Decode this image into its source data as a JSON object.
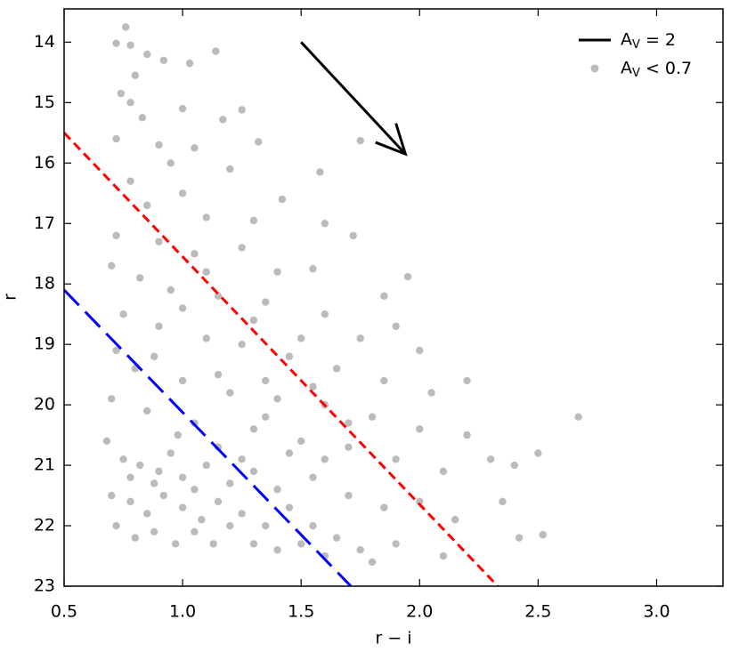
{
  "chart_data": {
    "type": "scatter",
    "x_label": "r − i",
    "y_label": "r",
    "xlim": [
      0.5,
      3.28
    ],
    "ylim": [
      13.45,
      23
    ],
    "y_inverted": true,
    "xticks": [
      0.5,
      {
        "value": 1,
        "label": "1.0"
      },
      1.5,
      {
        "value": 2,
        "label": "2.0"
      },
      2.5,
      {
        "value": 3,
        "label": "3.0"
      }
    ],
    "yticks": [
      14,
      15,
      16,
      17,
      18,
      19,
      20,
      21,
      22,
      23
    ],
    "legend": "upper right",
    "series": [
      {
        "name": "AV = 2",
        "kind": "arrow",
        "color": "#000000",
        "x": [
          1.5,
          1.94
        ],
        "y": [
          14,
          15.85
        ]
      },
      {
        "name": "AV < 0.7",
        "kind": "points",
        "color": "rgba(60,60,60,0.35)",
        "x": [
          0.76,
          0.72,
          0.78,
          0.85,
          0.92,
          1.03,
          1.14,
          0.8,
          0.74,
          0.78,
          0.83,
          1.0,
          1.17,
          1.25,
          0.72,
          0.9,
          1.05,
          0.95,
          1.2,
          1.32,
          1.58,
          1.75,
          1.42,
          1.6,
          1.72,
          0.78,
          0.85,
          1.0,
          1.1,
          1.3,
          0.72,
          0.9,
          1.05,
          1.25,
          1.4,
          1.55,
          1.85,
          1.95,
          0.7,
          0.82,
          0.95,
          1.15,
          1.35,
          1.6,
          1.75,
          1.9,
          2.0,
          0.75,
          0.9,
          1.1,
          1.25,
          1.45,
          1.65,
          1.85,
          2.05,
          2.2,
          0.72,
          0.8,
          1.0,
          1.2,
          1.4,
          1.6,
          1.8,
          2.0,
          2.2,
          2.3,
          2.67,
          0.7,
          0.85,
          1.05,
          1.3,
          1.5,
          1.7,
          1.9,
          2.1,
          2.4,
          2.5,
          0.68,
          0.75,
          0.82,
          0.9,
          0.95,
          1.0,
          1.1,
          1.2,
          1.3,
          1.4,
          1.55,
          1.7,
          1.85,
          2.0,
          2.15,
          2.35,
          2.42,
          2.52,
          0.7,
          0.78,
          0.85,
          0.92,
          1.0,
          1.08,
          1.15,
          1.25,
          1.35,
          1.45,
          1.55,
          1.65,
          1.75,
          1.9,
          2.1,
          0.72,
          0.8,
          0.88,
          0.97,
          1.05,
          1.13,
          1.2,
          1.3,
          1.4,
          1.5,
          1.6,
          1.8,
          0.88,
          0.78,
          1.05,
          0.98,
          1.15,
          1.25,
          1.35,
          1.45,
          1.6,
          1.7,
          1.0,
          1.1,
          1.3,
          1.5,
          0.88,
          1.15,
          1.35,
          1.55
        ],
        "y": [
          13.75,
          14.02,
          14.05,
          14.2,
          14.3,
          14.35,
          14.15,
          14.55,
          14.85,
          15.0,
          15.25,
          15.1,
          15.28,
          15.12,
          15.6,
          15.7,
          15.75,
          16.0,
          16.1,
          15.65,
          16.15,
          15.63,
          16.6,
          17.0,
          17.2,
          16.3,
          16.7,
          16.5,
          16.9,
          16.95,
          17.2,
          17.3,
          17.5,
          17.4,
          17.8,
          17.75,
          18.2,
          17.88,
          17.7,
          17.9,
          18.1,
          18.2,
          18.3,
          18.5,
          18.9,
          18.7,
          19.1,
          18.5,
          18.7,
          18.9,
          19.0,
          19.2,
          19.4,
          19.6,
          19.8,
          19.6,
          19.1,
          19.4,
          19.6,
          19.8,
          19.9,
          20.0,
          20.2,
          20.4,
          20.5,
          20.9,
          20.2,
          19.9,
          20.1,
          20.3,
          20.4,
          20.6,
          20.7,
          20.9,
          21.1,
          21.0,
          20.8,
          20.6,
          20.9,
          21.0,
          21.1,
          20.8,
          21.2,
          21.0,
          21.3,
          21.1,
          21.4,
          21.2,
          21.5,
          21.7,
          21.6,
          21.9,
          21.6,
          22.2,
          22.15,
          21.5,
          21.6,
          21.8,
          21.5,
          21.7,
          21.9,
          21.6,
          21.8,
          22.0,
          21.7,
          22.0,
          22.2,
          22.4,
          22.3,
          22.5,
          22.0,
          22.2,
          22.1,
          22.3,
          22.1,
          22.3,
          22.0,
          22.3,
          22.4,
          22.3,
          22.5,
          22.6,
          21.3,
          21.2,
          21.4,
          20.5,
          20.7,
          20.9,
          20.2,
          20.8,
          20.9,
          20.3,
          18.4,
          17.8,
          18.6,
          18.9,
          19.2,
          19.5,
          19.6,
          19.7
        ]
      }
    ],
    "lines": [
      {
        "color": "#ff0000",
        "dash": "short",
        "x": [
          0.5,
          2.33
        ],
        "y": [
          15.5,
          23
        ]
      },
      {
        "color": "#0000ff",
        "dash": "long",
        "x": [
          0.5,
          1.71
        ],
        "y": [
          18.1,
          23
        ]
      }
    ]
  }
}
